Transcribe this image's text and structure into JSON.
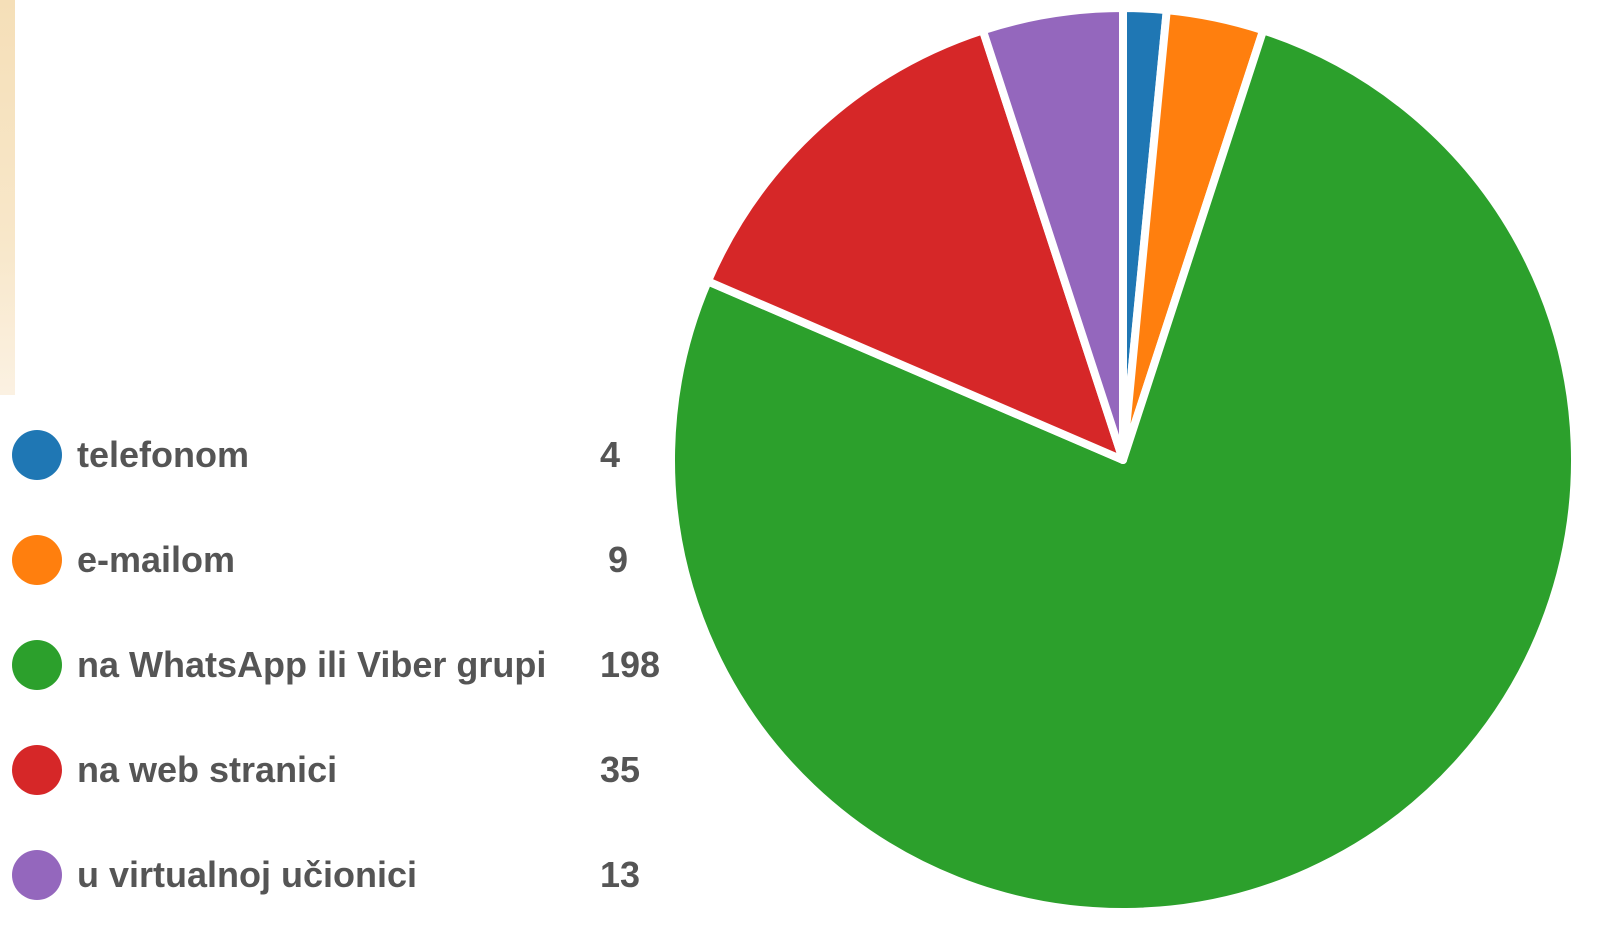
{
  "chart_data": {
    "type": "pie",
    "title": "",
    "slices": [
      {
        "label": "telefonom",
        "value": 4,
        "color": "#1f77b4"
      },
      {
        "label": "e-mailom",
        "value": 9,
        "color": "#ff7f0e"
      },
      {
        "label": "na WhatsApp ili Viber grupi",
        "value": 198,
        "color": "#2ca02c"
      },
      {
        "label": "na web stranici",
        "value": 35,
        "color": "#d62728"
      },
      {
        "label": "u virtualnoj učionici",
        "value": 13,
        "color": "#9467bd"
      }
    ],
    "legend_position": "left",
    "slice_border_color": "#ffffff"
  }
}
